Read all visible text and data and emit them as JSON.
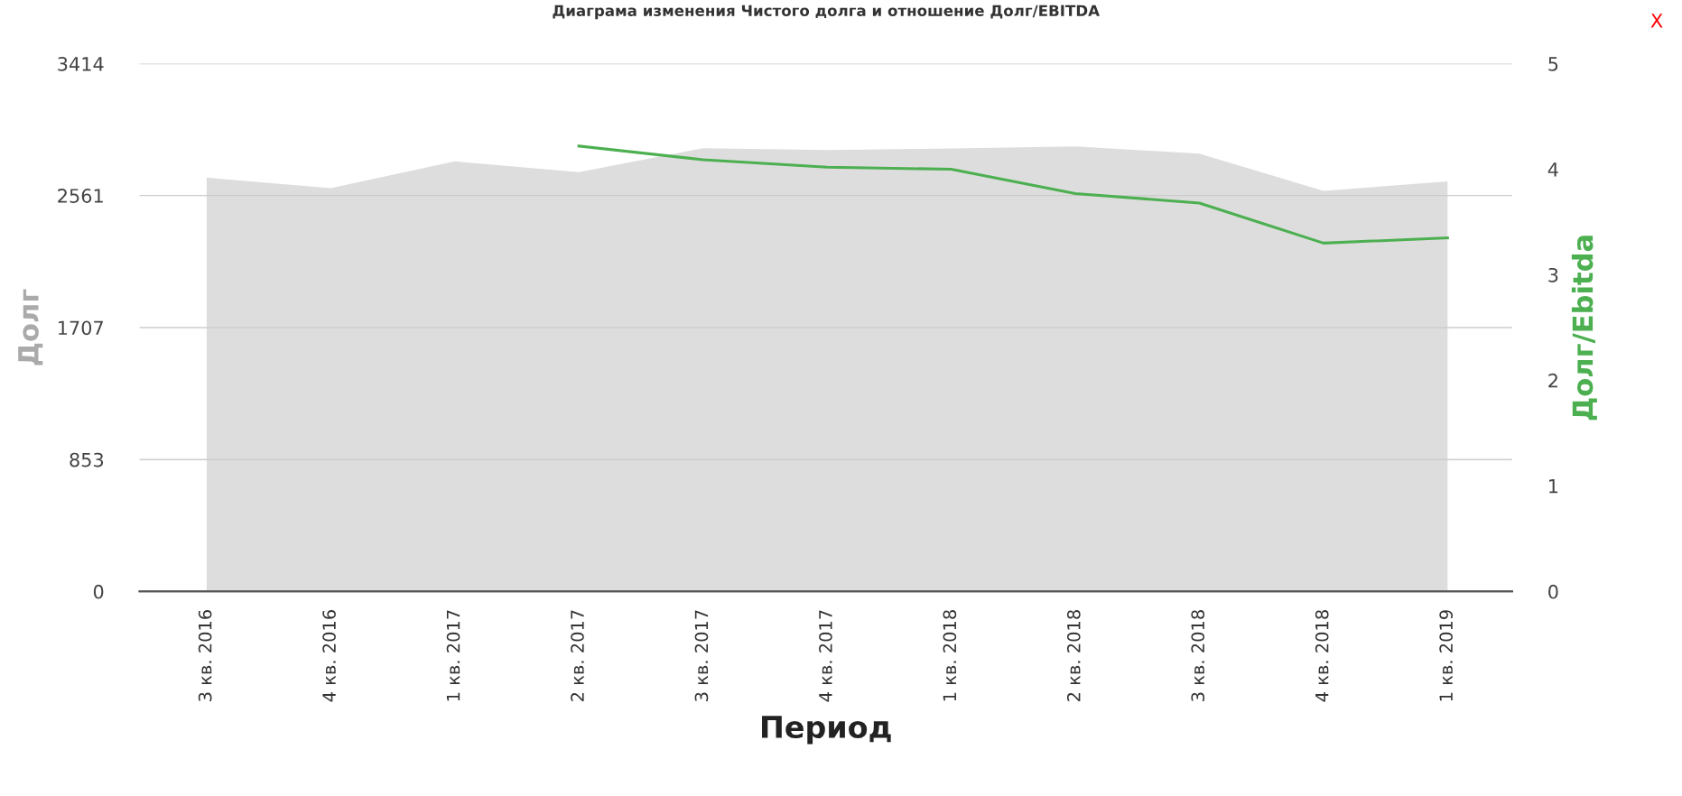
{
  "chart_data": {
    "type": "area",
    "title": "Диаграма изменения Чистого долга и отношение Долг/EBITDA",
    "xlabel": "Период",
    "ylabel": "Долг",
    "y2label": "Долг/Ebitda",
    "categories": [
      "3 кв. 2016",
      "4 кв. 2016",
      "1 кв. 2017",
      "2 кв. 2017",
      "3 кв. 2017",
      "4 кв. 2017",
      "1 кв. 2018",
      "2 кв. 2018",
      "3 кв. 2018",
      "4 кв. 2018",
      "1 кв. 2019"
    ],
    "series": [
      {
        "color": "#dddddd",
        "values": [
          2677,
          2608,
          2782,
          2712,
          2867,
          2855,
          2865,
          2879,
          2832,
          2591,
          2653
        ]
      },
      {
        "type": "line",
        "axis": "y2",
        "color": "#4caf50",
        "values": [
          null,
          null,
          null,
          4.22,
          4.09,
          4.02,
          4.0,
          3.77,
          3.68,
          3.3,
          3.35
        ]
      }
    ],
    "ylim": [
      0,
      3414
    ],
    "yticks": [
      0,
      853,
      1707,
      2561,
      3414
    ],
    "y2lim": [
      0,
      5
    ],
    "y2ticks": [
      0,
      1,
      2,
      3,
      4,
      5
    ],
    "grid": "y",
    "legend": false,
    "marker": "none",
    "line_style": "solid",
    "annotations": [
      "X"
    ]
  }
}
